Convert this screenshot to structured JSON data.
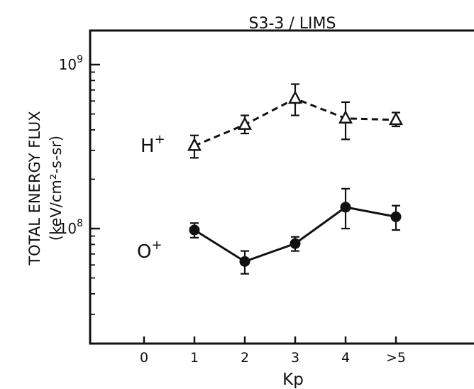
{
  "chart_data": {
    "type": "line",
    "title": "S3-3 / LIMS",
    "xlabel": "Kp",
    "ylabel_line1": "TOTAL ENERGY FLUX",
    "ylabel_line2": "(keV/cm²-s-sr)",
    "y_scale": "log",
    "ylim": [
      20000000,
      2000000000
    ],
    "y_ticks": [
      {
        "value": 1000000000,
        "base": "10",
        "exp": "9"
      },
      {
        "value": 100000000,
        "base": "10",
        "exp": "8"
      }
    ],
    "x_categories": [
      "0",
      "1",
      "2",
      "3",
      "4",
      ">5"
    ],
    "series": [
      {
        "name": "H",
        "name_sup": "+",
        "marker": "open-triangle",
        "line_style": "dashed",
        "x_index": [
          1,
          2,
          3,
          4,
          5
        ],
        "values": [
          320000000,
          430000000,
          620000000,
          470000000,
          460000000
        ],
        "err_low": [
          270000000,
          380000000,
          490000000,
          350000000,
          420000000
        ],
        "err_high": [
          370000000,
          490000000,
          760000000,
          590000000,
          510000000
        ]
      },
      {
        "name": "O",
        "name_sup": "+",
        "marker": "filled-circle",
        "line_style": "solid",
        "x_index": [
          1,
          2,
          3,
          4,
          5
        ],
        "values": [
          98000000,
          63000000,
          81000000,
          135000000,
          118000000
        ],
        "err_low": [
          88000000,
          53000000,
          73000000,
          100000000,
          98000000
        ],
        "err_high": [
          108000000,
          73000000,
          89000000,
          175000000,
          138000000
        ]
      }
    ],
    "grid": false
  }
}
